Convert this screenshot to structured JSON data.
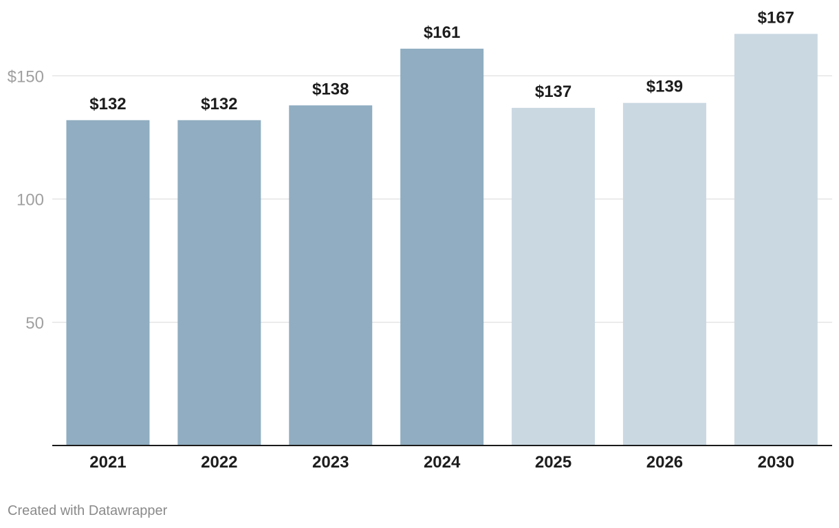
{
  "chart_data": {
    "type": "bar",
    "title": "",
    "xlabel": "",
    "ylabel": "",
    "categories": [
      "2021",
      "2022",
      "2023",
      "2024",
      "2025",
      "2026",
      "2030"
    ],
    "values": [
      132,
      132,
      138,
      161,
      137,
      139,
      167
    ],
    "data_labels": [
      "$132",
      "$132",
      "$138",
      "$161",
      "$137",
      "$139",
      "$167"
    ],
    "projected": [
      false,
      false,
      false,
      false,
      true,
      true,
      true
    ],
    "ylim": [
      0,
      180
    ],
    "y_ticks": [
      50,
      100,
      150
    ],
    "y_tick_labels": [
      "50",
      "100",
      "$150"
    ],
    "grid": true,
    "legend": "none",
    "colors": {
      "actual": "#90adc1",
      "projected": "#cad8e2",
      "gridline": "#e4e4e4",
      "baseline": "#1a1a1a",
      "y_tick_text": "#a0a0a0",
      "label_text": "#1d1d1d"
    }
  },
  "footer": {
    "credit": "Created with Datawrapper"
  }
}
